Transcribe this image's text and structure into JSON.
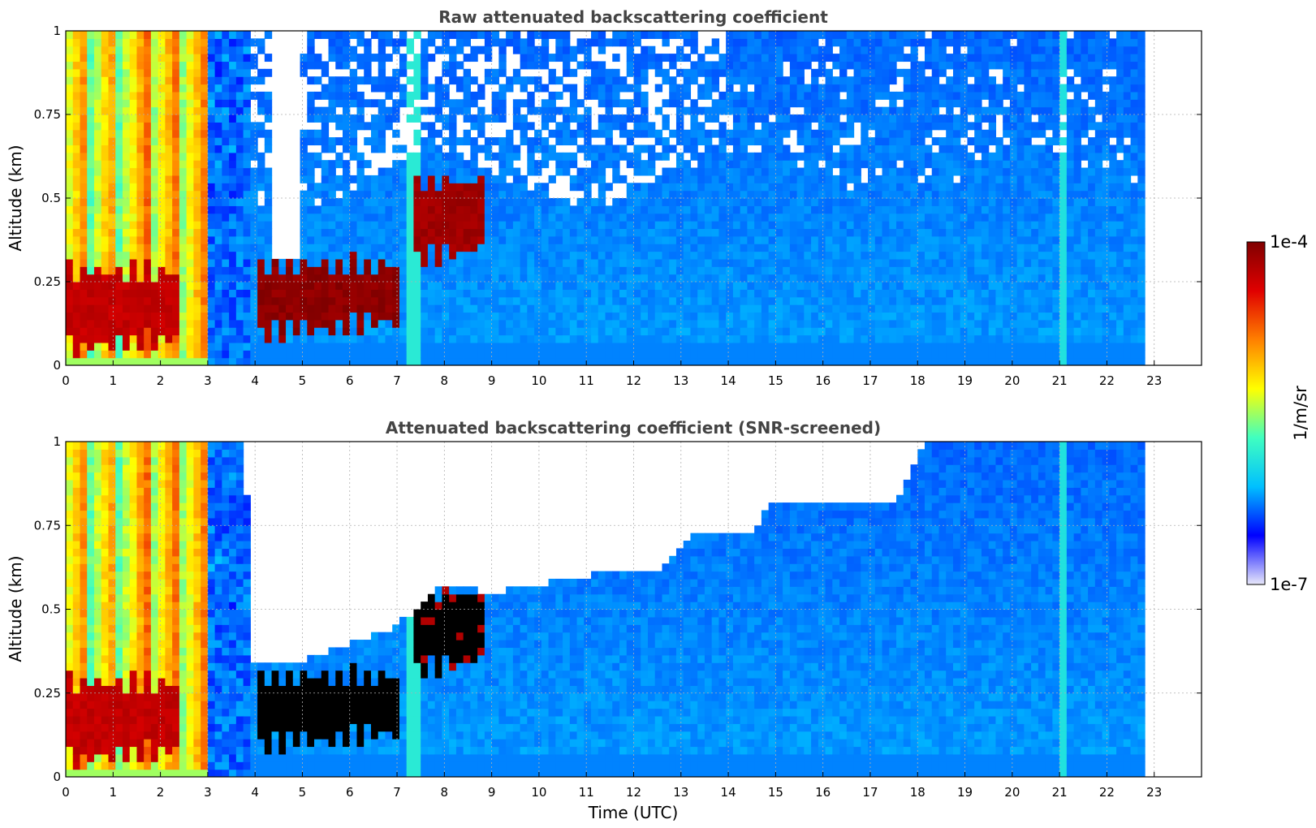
{
  "chart_data": [
    {
      "type": "heatmap",
      "title": "Raw attenuated backscattering coefficient",
      "xlabel": "",
      "ylabel": "Altitude (km)",
      "xlim": [
        0,
        24
      ],
      "ylim": [
        0,
        1
      ],
      "x_ticks": [
        "0",
        "1",
        "2",
        "3",
        "4",
        "5",
        "6",
        "7",
        "8",
        "9",
        "10",
        "11",
        "12",
        "13",
        "14",
        "15",
        "16",
        "17",
        "18",
        "19",
        "20",
        "21",
        "22",
        "23"
      ],
      "y_ticks": [
        "0",
        "0.25",
        "0.5",
        "0.75",
        "1"
      ],
      "grid": true,
      "data_time_range": [
        0,
        22.8
      ],
      "layers": [
        {
          "time_start": 0.0,
          "time_end": 2.4,
          "alt_bottom": 0.05,
          "alt_top": 0.28,
          "intensity": 0.9
        },
        {
          "time_start": 4.0,
          "time_end": 7.0,
          "alt_bottom": 0.1,
          "alt_top": 0.3,
          "intensity": 0.98
        },
        {
          "time_start": 7.3,
          "time_end": 8.9,
          "alt_bottom": 0.32,
          "alt_top": 0.55,
          "intensity": 0.95
        }
      ]
    },
    {
      "type": "heatmap",
      "title": "Attenuated backscattering coefficient (SNR-screened)",
      "xlabel": "Time (UTC)",
      "ylabel": "Altitude (km)",
      "xlim": [
        0,
        24
      ],
      "ylim": [
        0,
        1
      ],
      "x_ticks": [
        "0",
        "1",
        "2",
        "3",
        "4",
        "5",
        "6",
        "7",
        "8",
        "9",
        "10",
        "11",
        "12",
        "13",
        "14",
        "15",
        "16",
        "17",
        "18",
        "19",
        "20",
        "21",
        "22",
        "23"
      ],
      "y_ticks": [
        "0",
        "0.25",
        "0.5",
        "0.75",
        "1"
      ],
      "grid": true,
      "data_time_range": [
        0,
        22.8
      ],
      "screen_top_km": [
        [
          0,
          1
        ],
        [
          3.8,
          1
        ],
        [
          3.9,
          0.35
        ],
        [
          5.0,
          0.35
        ],
        [
          7.0,
          0.45
        ],
        [
          8.0,
          0.58
        ],
        [
          9.0,
          0.55
        ],
        [
          11.0,
          0.6
        ],
        [
          12.5,
          0.62
        ],
        [
          13.3,
          0.72
        ],
        [
          14.5,
          0.72
        ],
        [
          14.9,
          0.82
        ],
        [
          17.5,
          0.82
        ],
        [
          18.2,
          1
        ],
        [
          22.8,
          1
        ]
      ]
    }
  ],
  "colorbar": {
    "label": "1/m/sr",
    "max_label": "1e-4",
    "min_label": "1e-7",
    "colormap": [
      "#e8e8fa",
      "#0000ff",
      "#00c0ff",
      "#40ffc0",
      "#ffff00",
      "#ff8000",
      "#e00000",
      "#800000"
    ]
  }
}
